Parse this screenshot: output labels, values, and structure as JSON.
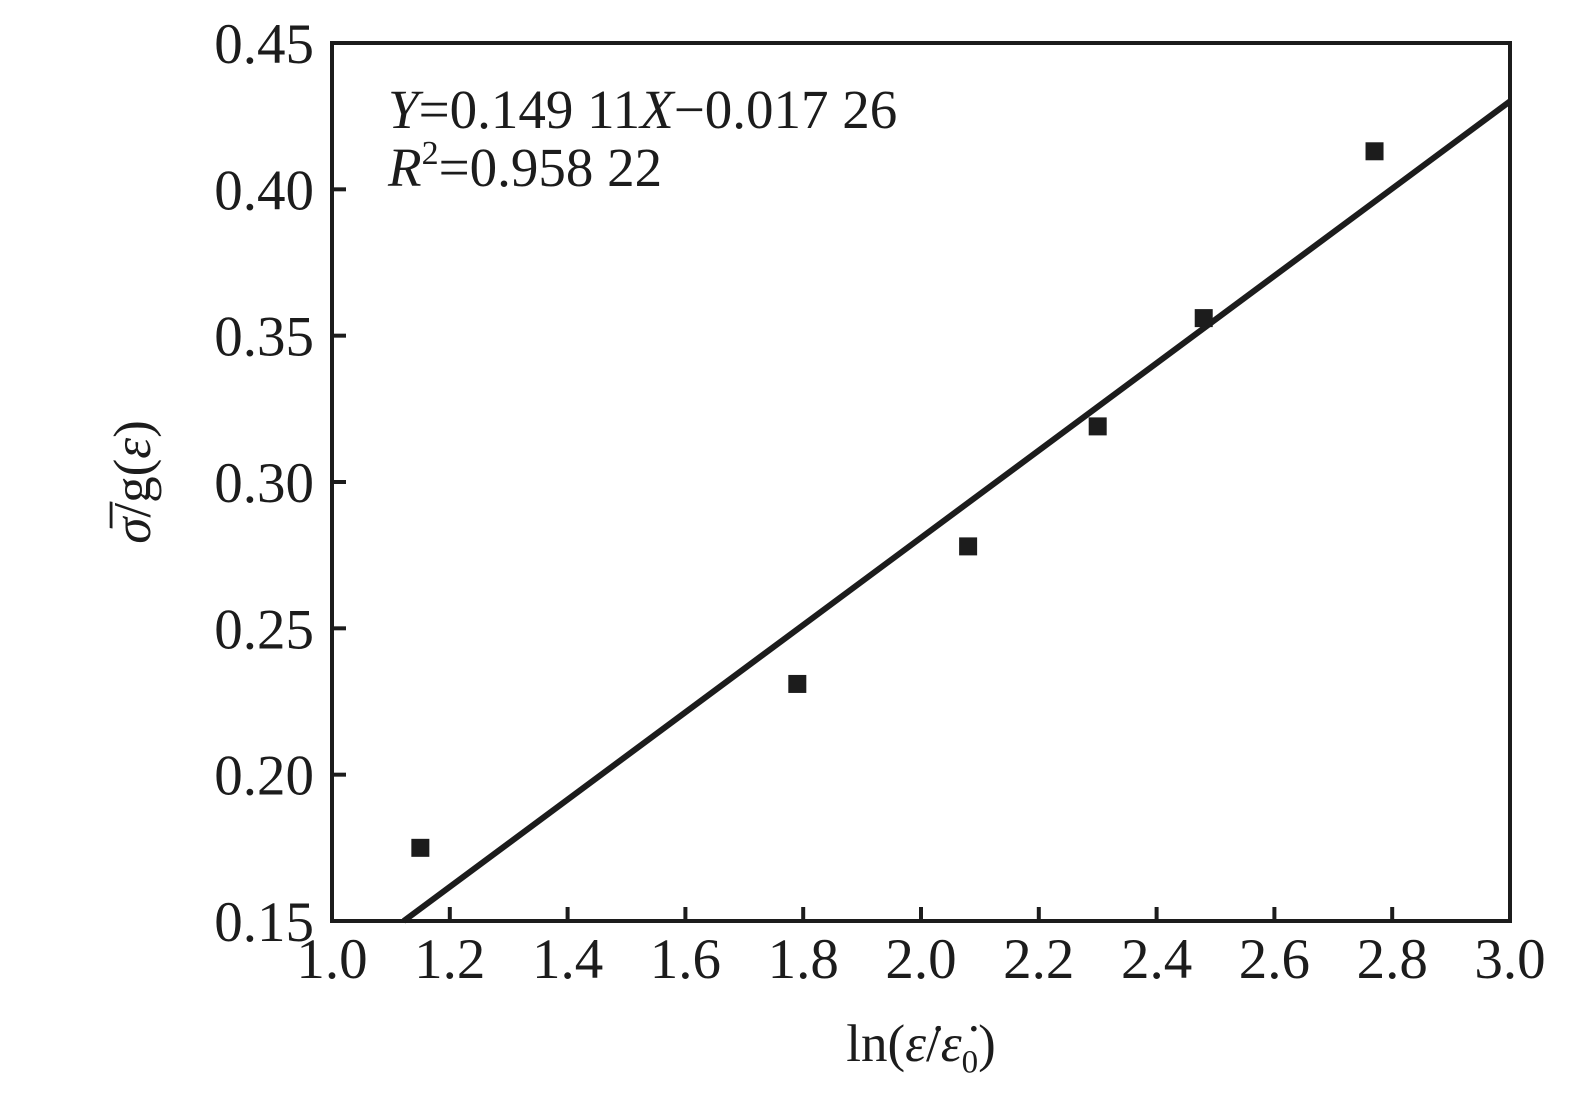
{
  "figure": {
    "background": "#ffffff",
    "ink_color": "#1c1c1c"
  },
  "chart_data": {
    "type": "scatter",
    "title": "",
    "x_label": "ln(ε̇/ε̇₀)",
    "y_label": "σ̅/g(ε)",
    "x_label_parts": [
      {
        "t": "ln("
      },
      {
        "t": "ε̇",
        "italic": true
      },
      {
        "t": "/"
      },
      {
        "t": "ε̇",
        "italic": true
      },
      {
        "t": "0",
        "sub": true
      },
      {
        "t": ")"
      }
    ],
    "y_label_parts": [
      {
        "t": "σ̅",
        "italic": true
      },
      {
        "t": "/g("
      },
      {
        "t": "ε",
        "italic": true
      },
      {
        "t": ")"
      }
    ],
    "xlim": [
      1.0,
      3.0
    ],
    "ylim": [
      0.15,
      0.45
    ],
    "x_ticks": [
      1.0,
      1.2,
      1.4,
      1.6,
      1.8,
      2.0,
      2.2,
      2.4,
      2.6,
      2.8,
      3.0
    ],
    "x_tick_labels": [
      "1.0",
      "1.2",
      "1.4",
      "1.6",
      "1.8",
      "2.0",
      "2.2",
      "2.4",
      "2.6",
      "2.8",
      "3.0"
    ],
    "y_ticks": [
      0.15,
      0.2,
      0.25,
      0.3,
      0.35,
      0.4,
      0.45
    ],
    "y_tick_labels": [
      "0.15",
      "0.20",
      "0.25",
      "0.30",
      "0.35",
      "0.40",
      "0.45"
    ],
    "grid": false,
    "legend": false,
    "series": [
      {
        "name": "measured-points",
        "marker": "square",
        "color": "#1c1c1c",
        "points": [
          [
            1.15,
            0.175
          ],
          [
            1.79,
            0.231
          ],
          [
            2.08,
            0.278
          ],
          [
            2.3,
            0.319
          ],
          [
            2.48,
            0.356
          ],
          [
            2.77,
            0.413
          ]
        ]
      }
    ],
    "fit_line": {
      "slope": 0.14911,
      "intercept": -0.01726,
      "color": "#1c1c1c"
    },
    "annotation": {
      "line1_text": "Y=0.149 11X−0.017 26",
      "line2_text": "R²=0.958 22",
      "line1_parts": [
        {
          "t": "Y",
          "italic": true
        },
        {
          "t": "=0.149 11"
        },
        {
          "t": "X",
          "italic": true
        },
        {
          "t": "−0.017 26"
        }
      ],
      "line2_parts": [
        {
          "t": "R",
          "italic": true
        },
        {
          "t": "2",
          "sup": true
        },
        {
          "t": "=0.958 22"
        }
      ]
    }
  }
}
